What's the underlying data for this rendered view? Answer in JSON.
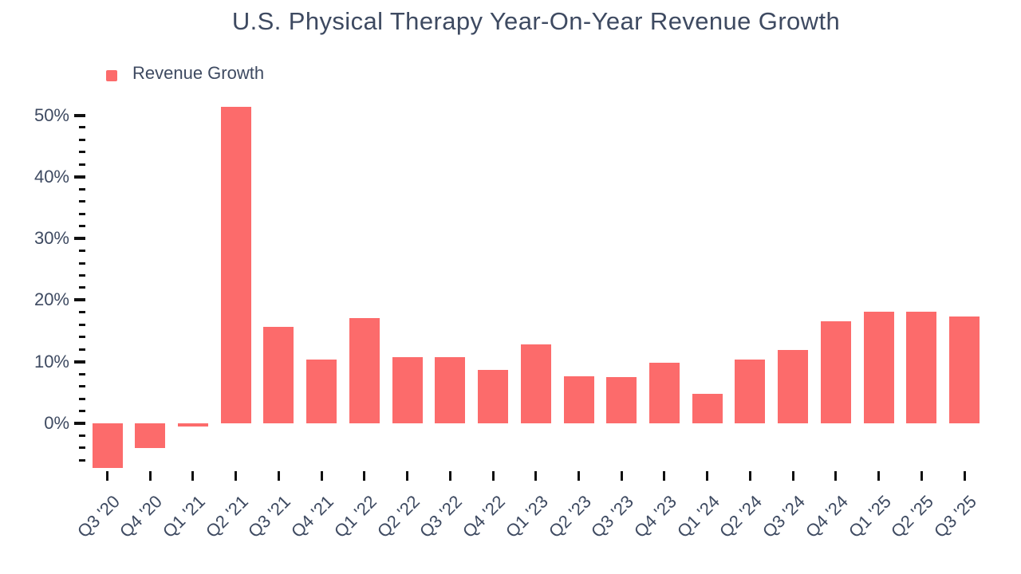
{
  "page": {
    "title": "U.S. Physical Therapy Year-On-Year Revenue Growth"
  },
  "legend": {
    "label": "Revenue Growth"
  },
  "colors": {
    "bar": "#FC6B6B",
    "text": "#3E4A61",
    "tick": "#111111",
    "background": "#FFFFFF"
  },
  "chart_data": {
    "type": "bar",
    "title": "U.S. Physical Therapy Year-On-Year Revenue Growth",
    "xlabel": "",
    "ylabel": "",
    "categories": [
      "Q3 '20",
      "Q4 '20",
      "Q1 '21",
      "Q2 '21",
      "Q3 '21",
      "Q4 '21",
      "Q1 '22",
      "Q2 '22",
      "Q3 '22",
      "Q4 '22",
      "Q1 '23",
      "Q2 '23",
      "Q3 '23",
      "Q4 '23",
      "Q1 '24",
      "Q2 '24",
      "Q3 '24",
      "Q4 '24",
      "Q1 '25",
      "Q2 '25",
      "Q3 '25"
    ],
    "series": [
      {
        "name": "Revenue Growth",
        "color": "#FC6B6B",
        "values": [
          -7.2,
          -4.0,
          -0.5,
          51.3,
          15.7,
          10.4,
          17.1,
          10.8,
          10.8,
          8.7,
          12.8,
          7.6,
          7.5,
          9.8,
          4.8,
          10.3,
          11.9,
          16.6,
          18.1,
          18.1,
          17.3
        ]
      }
    ],
    "ylim": [
      -8,
      53
    ],
    "y_major_ticks": [
      0,
      10,
      20,
      30,
      40,
      50
    ],
    "y_tick_labels": [
      "0%",
      "10%",
      "20%",
      "30%",
      "40%",
      "50%"
    ],
    "y_minor_step": 2,
    "grid": false,
    "legend_position": "top-left",
    "bar_orientation": "vertical",
    "x_tick_labels_rotation_deg": -45
  }
}
